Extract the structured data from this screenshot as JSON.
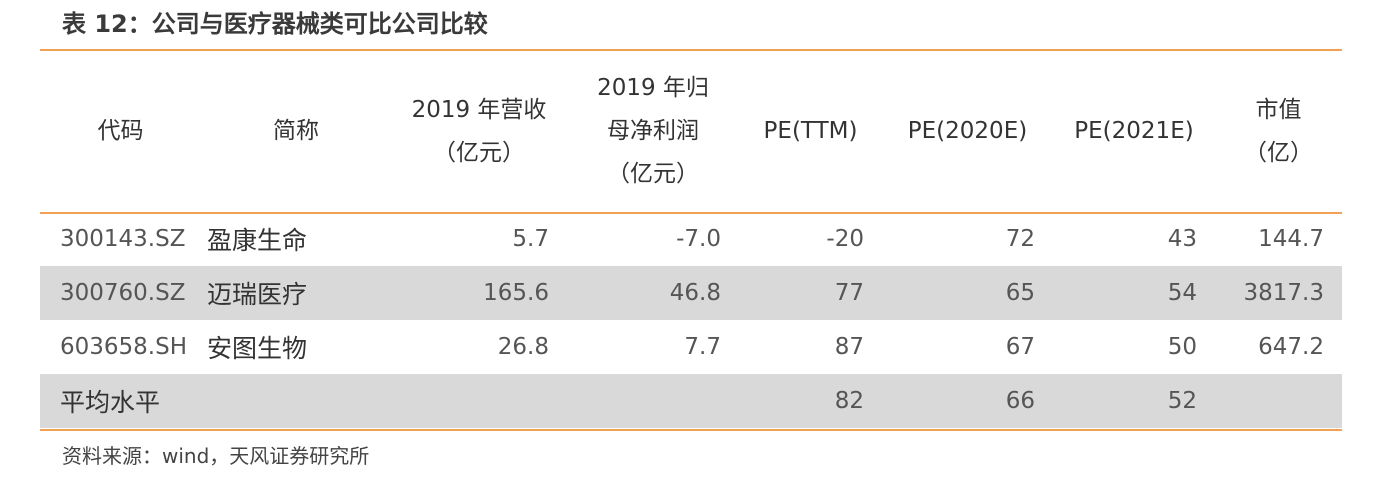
{
  "title": "表 12：公司与医疗器械类可比公司比较",
  "table": {
    "headers": {
      "code": "代码",
      "name": "简称",
      "revenue_l1": "2019 年营收",
      "revenue_l2": "（亿元）",
      "profit_l1": "2019 年归",
      "profit_l2": "母净利润",
      "profit_l3": "（亿元）",
      "pe_ttm": "PE(TTM)",
      "pe_2020": "PE(2020E)",
      "pe_2021": "PE(2021E)",
      "mv_l1": "市值",
      "mv_l2": "（亿）"
    },
    "rows": [
      {
        "code": "300143.SZ",
        "name": "盈康生命",
        "revenue": "5.7",
        "profit": "-7.0",
        "pe_ttm": "-20",
        "pe_2020": "72",
        "pe_2021": "43",
        "mv": "144.7"
      },
      {
        "code": "300760.SZ",
        "name": "迈瑞医疗",
        "revenue": "165.6",
        "profit": "46.8",
        "pe_ttm": "77",
        "pe_2020": "65",
        "pe_2021": "54",
        "mv": "3817.3"
      },
      {
        "code": "603658.SH",
        "name": "安图生物",
        "revenue": "26.8",
        "profit": "7.7",
        "pe_ttm": "87",
        "pe_2020": "67",
        "pe_2021": "50",
        "mv": "647.2"
      }
    ],
    "average": {
      "label": "平均水平",
      "pe_ttm": "82",
      "pe_2020": "66",
      "pe_2021": "52"
    }
  },
  "source": "资料来源：wind，天风证券研究所",
  "colors": {
    "rule": "#f2a053",
    "shade": "#d9d9d9"
  }
}
